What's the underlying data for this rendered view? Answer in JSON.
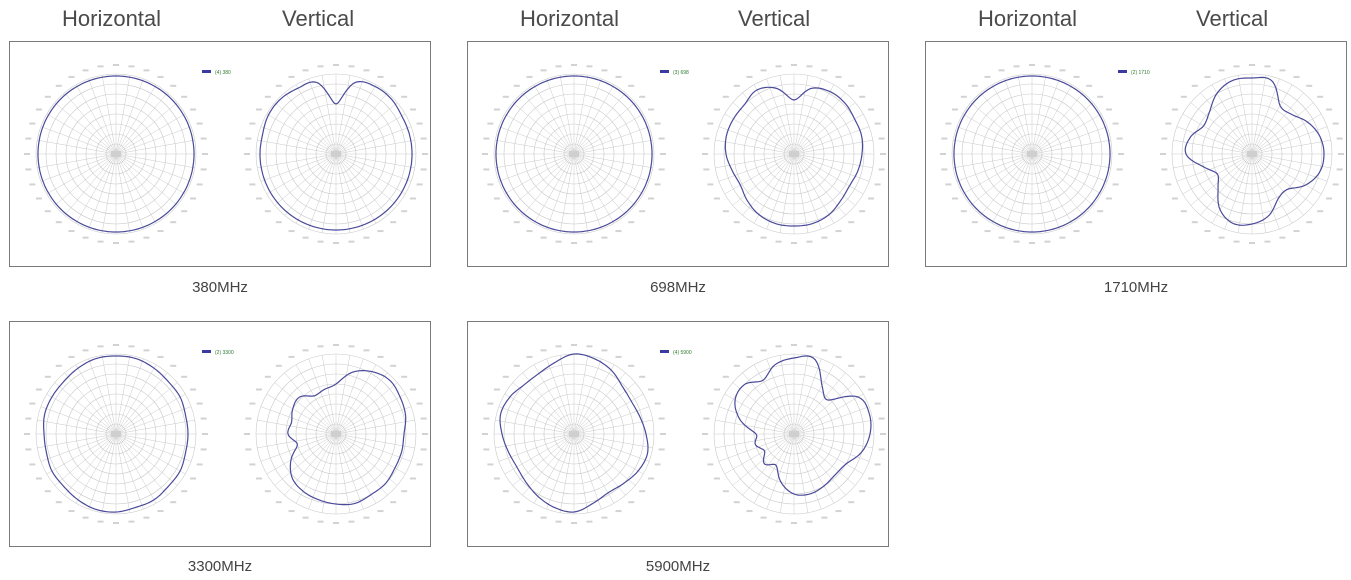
{
  "column_headers": [
    {
      "horizontal": "Horizontal",
      "vertical": "Vertical"
    },
    {
      "horizontal": "Horizontal",
      "vertical": "Vertical"
    },
    {
      "horizontal": "Horizontal",
      "vertical": "Vertical"
    }
  ],
  "colors": {
    "pattern": "#4a4a9a",
    "grid": "#c9c9c9",
    "legend": "#3a3aa0"
  },
  "chart_data": [
    {
      "type": "polar",
      "caption": "380MHz",
      "legend": "(4) 380",
      "horizontal": {
        "radius_db": [
          -1,
          -1,
          -1,
          -1,
          -1,
          -1,
          -1,
          -1,
          -1,
          -1,
          -1,
          -1,
          -1,
          -1,
          -1,
          -1,
          -1,
          -1,
          -1,
          -1,
          -1,
          -1,
          -1,
          -1
        ]
      },
      "vertical": {
        "radius_db": [
          -15,
          -3,
          -1,
          -1,
          -2,
          -2,
          -2,
          -2,
          -2,
          -2,
          -2,
          -2,
          -2,
          -2,
          -2,
          -2,
          -2,
          -2,
          -2,
          -2,
          -1,
          -1,
          -2,
          -3
        ]
      }
    },
    {
      "type": "polar",
      "caption": "698MHz",
      "legend": "(3) 698",
      "horizontal": {
        "radius_db": [
          -1,
          -1,
          -1,
          -1,
          -1,
          -1,
          -1,
          -1,
          -1,
          -1,
          -1,
          -1,
          -1,
          -1,
          -1,
          -1,
          -1,
          -1,
          -1,
          -1,
          -1,
          -1,
          -1,
          -1
        ]
      },
      "vertical": {
        "radius_db": [
          -13,
          -6,
          -4,
          -4,
          -5,
          -5,
          -6,
          -7,
          -8,
          -7,
          -5,
          -4,
          -4,
          -4,
          -5,
          -7,
          -9,
          -8,
          -6,
          -5,
          -5,
          -5,
          -3,
          -6
        ]
      }
    },
    {
      "type": "polar",
      "caption": "1710MHz",
      "legend": "(2) 1710",
      "horizontal": {
        "radius_db": [
          -1,
          -1,
          -1,
          -1,
          -1,
          -1,
          -1,
          -1,
          -1,
          -1,
          -1,
          -1,
          -1,
          -1,
          -1,
          -1,
          -1,
          -1,
          -1,
          -1,
          -1,
          -1,
          -1,
          -1
        ]
      },
      "vertical": {
        "radius_db": [
          -2,
          -2,
          -12,
          -12,
          -8,
          -5,
          -4,
          -5,
          -9,
          -15,
          -14,
          -8,
          -5,
          -4,
          -8,
          -16,
          -20,
          -15,
          -7,
          -8,
          -12,
          -10,
          -5,
          -2
        ]
      }
    },
    {
      "type": "polar",
      "caption": "3300MHz",
      "legend": "(2) 3300",
      "horizontal": {
        "radius_db": [
          -1,
          -1,
          -2,
          -3,
          -3,
          -4,
          -4,
          -4,
          -3,
          -3,
          -2,
          -2,
          -1,
          -1,
          -2,
          -3,
          -3,
          -4,
          -4,
          -3,
          -3,
          -3,
          -2,
          -1
        ]
      },
      "vertical": {
        "radius_db": [
          -15,
          -8,
          -4,
          -2,
          -3,
          -4,
          -6,
          -6,
          -6,
          -5,
          -5,
          -4,
          -5,
          -6,
          -7,
          -9,
          -14,
          -20,
          -16,
          -17,
          -15,
          -14,
          -18,
          -17
        ]
      }
    },
    {
      "type": "polar",
      "caption": "5900MHz",
      "legend": "(4) 5900",
      "horizontal": {
        "radius_db": [
          0,
          -1,
          -3,
          -6,
          -7,
          -6,
          -4,
          -2,
          -3,
          -5,
          -6,
          -4,
          -1,
          -2,
          -4,
          -6,
          -7,
          -6,
          -4,
          -2,
          -3,
          -5,
          -5,
          -3
        ]
      },
      "vertical": {
        "radius_db": [
          -2,
          -1,
          -12,
          -16,
          -3,
          -1,
          -2,
          -5,
          -10,
          -11,
          -10,
          -9,
          -10,
          -15,
          -22,
          -19,
          -23,
          -20,
          -21,
          -12,
          -6,
          -5,
          -9,
          -4
        ]
      }
    }
  ]
}
